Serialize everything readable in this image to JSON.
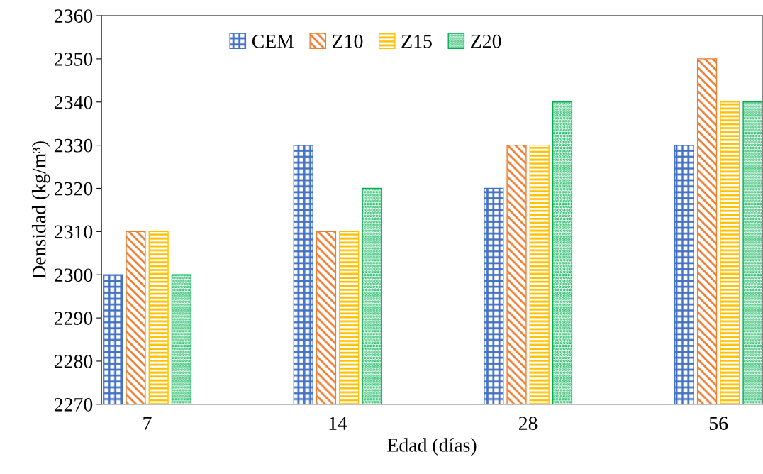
{
  "chart_data": {
    "type": "bar",
    "xlabel": "Edad (días)",
    "ylabel": "Densidad (kg/m³)",
    "categories": [
      "7",
      "14",
      "28",
      "56"
    ],
    "series": [
      {
        "name": "CEM",
        "color": "#4472c4",
        "values": [
          2300,
          2330,
          2320,
          2330
        ]
      },
      {
        "name": "Z10",
        "color": "#ed7d31",
        "values": [
          2310,
          2310,
          2330,
          2350
        ]
      },
      {
        "name": "Z15",
        "color": "#ffc000",
        "values": [
          2310,
          2310,
          2330,
          2340
        ]
      },
      {
        "name": "Z20",
        "color": "#00b050",
        "values": [
          2300,
          2320,
          2340,
          2340
        ]
      }
    ],
    "ylim": [
      2270,
      2360
    ],
    "yticks": [
      2270,
      2280,
      2290,
      2300,
      2310,
      2320,
      2330,
      2340,
      2350,
      2360
    ],
    "grid": false,
    "legend": "top"
  }
}
